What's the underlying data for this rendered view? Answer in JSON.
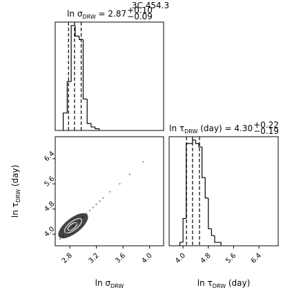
{
  "title": "3C 454.3",
  "chart_data": [
    {
      "type": "histogram",
      "title": {
        "symbol": "ln σ",
        "subscript": "DRW",
        "text": " = 2.87",
        "upper": "+0.10",
        "lower": "−0.09"
      },
      "bins": [
        2.7,
        2.76,
        2.82,
        2.88,
        2.94,
        3.0,
        3.06,
        3.12,
        3.18,
        3.24
      ],
      "values": [
        5,
        14,
        30,
        27,
        26,
        9,
        2,
        1,
        0.5
      ],
      "quantiles": [
        2.78,
        2.87,
        2.97
      ],
      "xlim": [
        2.58,
        4.21
      ],
      "ylim": [
        0,
        31
      ]
    },
    {
      "type": "scatter",
      "x": [
        2.65,
        2.7,
        2.75,
        2.8,
        2.85,
        2.9,
        2.95,
        3.0,
        3.05,
        3.1,
        3.15,
        3.2,
        3.25,
        3.3,
        3.4,
        3.55,
        3.7,
        3.9
      ],
      "y": [
        3.85,
        3.95,
        4.05,
        4.15,
        4.25,
        4.35,
        4.45,
        4.55,
        4.65,
        4.75,
        4.85,
        4.95,
        5.05,
        5.15,
        5.35,
        5.6,
        5.9,
        6.3
      ],
      "xlim": [
        2.58,
        4.21
      ],
      "ylim": [
        3.63,
        7.1
      ],
      "xticks": [
        2.8,
        3.2,
        3.6,
        {
          "value": 4,
          "label": "4.0"
        }
      ],
      "yticks": [
        {
          "value": 4,
          "label": "4.0"
        },
        4.8,
        5.6,
        6.4
      ],
      "xlabel": {
        "symbol": "ln σ",
        "subscript": "DRW"
      },
      "ylabel": {
        "symbol": "ln τ",
        "subscript": "DRW",
        "text": " (day)"
      }
    },
    {
      "type": "histogram",
      "title": {
        "symbol": "ln τ",
        "subscript": "DRW",
        "text": " (day) = 4.30",
        "upper": "+0.22",
        "lower": "−0.19"
      },
      "bins": [
        3.9,
        4.0,
        4.1,
        4.2,
        4.3,
        4.4,
        4.5,
        4.6,
        4.7,
        4.8,
        4.9,
        5.0,
        5.1,
        5.2
      ],
      "values": [
        1,
        8,
        30,
        30,
        31,
        30,
        29,
        20,
        14,
        5,
        3,
        1,
        1
      ],
      "quantiles": [
        4.11,
        4.3,
        4.52
      ],
      "xlim": [
        3.56,
        7.01
      ],
      "ylim": [
        0,
        32
      ],
      "xticks": [
        {
          "value": 4,
          "label": "4.0"
        },
        4.8,
        5.6,
        6.4
      ],
      "xlabel": {
        "symbol": "ln τ",
        "subscript": "DRW",
        "text": " (day)"
      }
    }
  ]
}
